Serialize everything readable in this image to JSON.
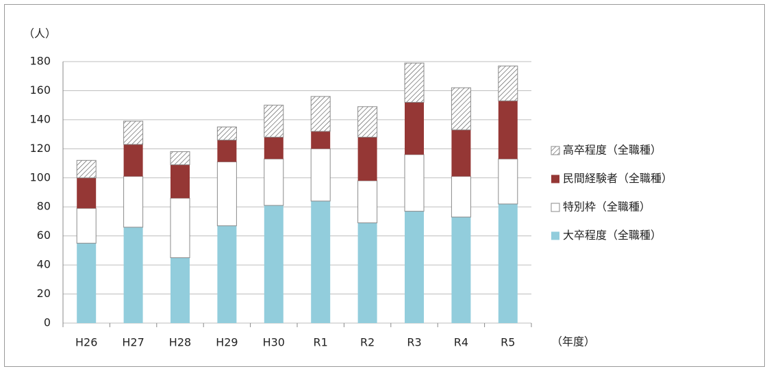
{
  "chart_data": {
    "type": "stacked_bar",
    "y_label": "（人）",
    "x_label": "（年度）",
    "categories": [
      "H26",
      "H27",
      "H28",
      "H29",
      "H30",
      "R1",
      "R2",
      "R3",
      "R4",
      "R5"
    ],
    "series": [
      {
        "name": "大卒程度（全職種）",
        "color": "#92cddc",
        "values": [
          55,
          66,
          45,
          67,
          81,
          84,
          69,
          77,
          73,
          82
        ]
      },
      {
        "name": "特別枠（全職種）",
        "color": "#ffffff",
        "values": [
          24,
          35,
          41,
          44,
          32,
          36,
          29,
          39,
          28,
          31
        ]
      },
      {
        "name": "民間経験者（全職種）",
        "color": "#953735",
        "values": [
          21,
          22,
          23,
          15,
          15,
          12,
          30,
          36,
          32,
          40
        ]
      },
      {
        "name": "高卒程度（全職種）",
        "color": "#ffffff",
        "hatch": true,
        "values": [
          12,
          16,
          9,
          9,
          22,
          24,
          21,
          27,
          29,
          24
        ]
      }
    ],
    "ylim": [
      0,
      180
    ],
    "yticks": [
      0,
      20,
      40,
      60,
      80,
      100,
      120,
      140,
      160,
      180
    ],
    "grid": true,
    "legend": "right"
  }
}
